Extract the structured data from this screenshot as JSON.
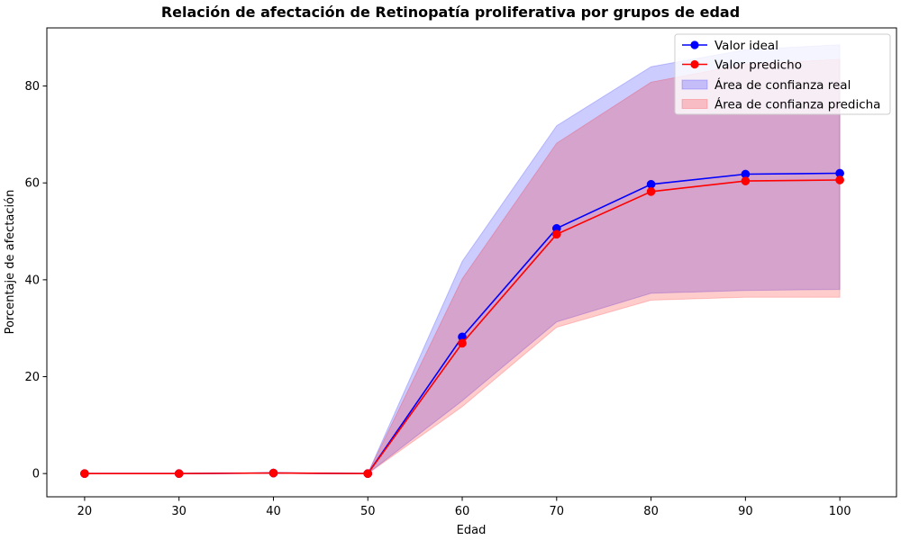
{
  "chart_data": {
    "type": "line",
    "title": "Relación de afectación de Retinopatía proliferativa por grupos de edad",
    "xlabel": "Edad",
    "ylabel": "Porcentaje de afectación",
    "xlim": [
      16,
      106
    ],
    "ylim": [
      -4.8,
      92
    ],
    "x_ticks": [
      20,
      30,
      40,
      50,
      60,
      70,
      80,
      90,
      100
    ],
    "y_ticks": [
      0,
      20,
      40,
      60,
      80
    ],
    "legend_position": "top-right",
    "grid": false,
    "x": [
      20,
      30,
      40,
      50,
      60,
      70,
      80,
      90,
      100
    ],
    "series": [
      {
        "name": "Valor ideal",
        "color": "#0000ff",
        "marker": "circle",
        "values": [
          0.0,
          0.0,
          0.1,
          0.0,
          28.2,
          50.6,
          59.7,
          61.8,
          62.0
        ]
      },
      {
        "name": "Valor predicho",
        "color": "#ff0000",
        "marker": "circle",
        "values": [
          0.0,
          0.0,
          0.1,
          0.0,
          26.9,
          49.4,
          58.2,
          60.4,
          60.6
        ]
      }
    ],
    "bands": [
      {
        "name": "Área de confianza real",
        "color": "#0000ff",
        "opacity": 0.2,
        "lower": [
          0.0,
          0.0,
          0.1,
          0.0,
          15.0,
          31.3,
          37.2,
          37.8,
          38.0
        ],
        "upper": [
          0.0,
          0.0,
          0.1,
          0.0,
          43.8,
          71.8,
          84.0,
          87.5,
          88.5
        ]
      },
      {
        "name": "Área de confianza predicha",
        "color": "#ff0000",
        "opacity": 0.2,
        "lower": [
          0.0,
          0.0,
          0.1,
          0.0,
          13.8,
          30.2,
          35.8,
          36.4,
          36.4
        ],
        "upper": [
          0.0,
          0.0,
          0.1,
          0.0,
          40.2,
          68.2,
          80.8,
          84.5,
          85.5
        ]
      }
    ]
  }
}
